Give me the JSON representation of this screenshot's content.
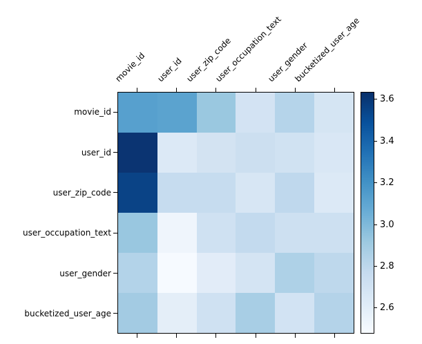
{
  "chart_data": {
    "type": "heatmap",
    "title": "",
    "colormap": "Blues",
    "x_labels": [
      "movie_id",
      "user_id",
      "user_zip_code",
      "user_occupation_text",
      "user_gender",
      "bucketized_user_age"
    ],
    "y_labels": [
      "movie_id",
      "user_id",
      "user_zip_code",
      "user_occupation_text",
      "user_gender",
      "bucketized_user_age"
    ],
    "values": [
      [
        3.13,
        3.12,
        2.93,
        2.67,
        2.82,
        2.66
      ],
      [
        3.61,
        2.63,
        2.67,
        2.71,
        2.69,
        2.65
      ],
      [
        3.5,
        2.77,
        2.77,
        2.65,
        2.79,
        2.63
      ],
      [
        2.93,
        2.53,
        2.7,
        2.78,
        2.71,
        2.71
      ],
      [
        2.83,
        2.49,
        2.6,
        2.67,
        2.86,
        2.79
      ],
      [
        2.9,
        2.59,
        2.7,
        2.88,
        2.68,
        2.83
      ]
    ],
    "cell_colors": [
      [
        "#57a0ce",
        "#5ba3cf",
        "#9ac8e0",
        "#d3e3f3",
        "#b5d4ea",
        "#d5e5f3"
      ],
      [
        "#0b3472",
        "#dce9f6",
        "#d3e3f2",
        "#ccdff0",
        "#d0e2f2",
        "#d9e7f5"
      ],
      [
        "#0a4386",
        "#c6dcef",
        "#c6dcef",
        "#d7e6f4",
        "#bfd8ed",
        "#dce9f6"
      ],
      [
        "#99c7e0",
        "#eff5fc",
        "#cfe1f2",
        "#c3daee",
        "#cde0f1",
        "#cde0f1"
      ],
      [
        "#b3d3e9",
        "#f6faff",
        "#e2ecf8",
        "#d4e4f3",
        "#aed1e7",
        "#bed8ec"
      ],
      [
        "#a3cbe3",
        "#e4eef8",
        "#cfe1f2",
        "#a8cee5",
        "#d2e3f3",
        "#b4d3e9"
      ]
    ],
    "colorbar": {
      "vmin": 2.477,
      "vmax": 3.636,
      "tick_values": [
        3.6,
        3.4,
        3.2,
        3.0,
        2.8,
        2.6
      ],
      "gradient_stops_top_to_bottom": [
        "#08306b",
        "#08519c",
        "#2171b5",
        "#4292c6",
        "#6baed6",
        "#9ecae1",
        "#c6dbef",
        "#deebf7",
        "#f7fbff"
      ]
    },
    "grid": false,
    "axis_color": "#000000"
  }
}
